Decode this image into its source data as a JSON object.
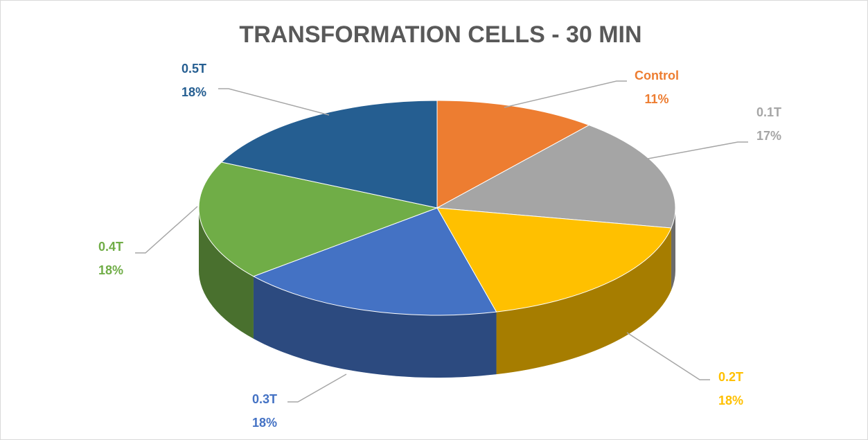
{
  "chart_data": {
    "type": "pie",
    "title": "TRANSFORMATION CELLS - 30 MIN",
    "categories": [
      "Control",
      "0.1T",
      "0.2T",
      "0.3T",
      "0.4T",
      "0.5T"
    ],
    "values": [
      11,
      17,
      18,
      18,
      18,
      18
    ],
    "value_labels": [
      "11%",
      "17%",
      "18%",
      "18%",
      "18%",
      "18%"
    ],
    "colors": [
      "#ed7d31",
      "#a5a5a5",
      "#ffc000",
      "#4472c4",
      "#70ad47",
      "#255e91"
    ]
  }
}
